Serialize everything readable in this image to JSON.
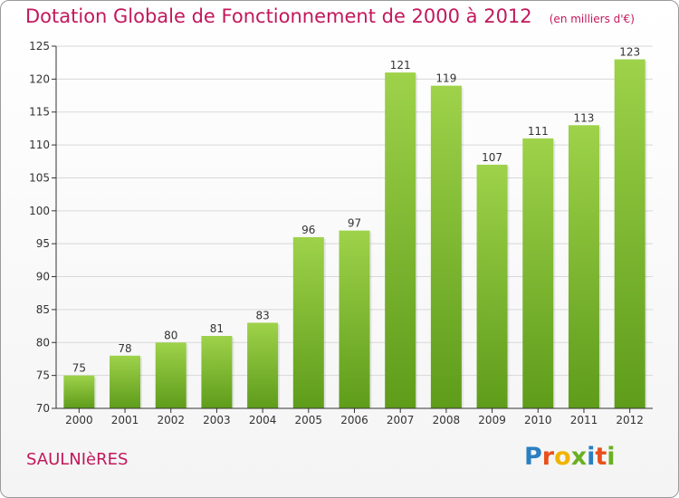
{
  "header": {
    "title": "Dotation Globale de Fonctionnement de 2000 à 2012",
    "unit_note": "(en milliers d'€)"
  },
  "footer": {
    "commune_name": "SAULNIèRES",
    "brand": {
      "letters": [
        "P",
        "r",
        "o",
        "x",
        "i",
        "t",
        "i"
      ],
      "colors": [
        "#2a7fc1",
        "#e8501c",
        "#f0b400",
        "#6ab023",
        "#2a7fc1",
        "#e8501c",
        "#6ab023"
      ]
    }
  },
  "colors": {
    "accent": "#c2185b",
    "bar_light": "#9ed24a",
    "bar_dark": "#5e9c1a",
    "axis": "#333333",
    "grid": "#d8d8d8"
  },
  "chart_data": {
    "type": "bar",
    "categories": [
      "2000",
      "2001",
      "2002",
      "2003",
      "2004",
      "2005",
      "2006",
      "2007",
      "2008",
      "2009",
      "2010",
      "2011",
      "2012"
    ],
    "values": [
      75,
      78,
      80,
      81,
      83,
      96,
      97,
      121,
      119,
      107,
      111,
      113,
      123
    ],
    "ylim": [
      70,
      125
    ],
    "yticks": [
      70,
      75,
      80,
      85,
      90,
      95,
      100,
      105,
      110,
      115,
      120,
      125
    ],
    "grid": true,
    "legend": "none"
  }
}
